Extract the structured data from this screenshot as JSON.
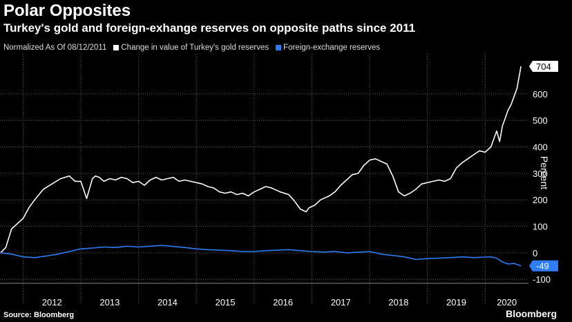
{
  "header": {
    "title": "Polar Opposites",
    "subtitle": "Turkey's gold and foreign-exhange reserves on opposite paths since 2011"
  },
  "legend": {
    "normalized": "Normalized As Of 08/12/2011",
    "gold": "Change in value of Turkey's gold reserves",
    "fx": "Foreign-exchange reserves"
  },
  "footer": {
    "source": "Source: Bloomberg",
    "brand": "Bloomberg"
  },
  "colors": {
    "gold": "#ffffff",
    "fx": "#2e7cf6",
    "background": "#000000",
    "grid": "#5a5a5a"
  },
  "chart_data": {
    "type": "line",
    "ylabel": "Percent",
    "ylim": [
      -115,
      730
    ],
    "xlim": [
      2011.6,
      2020.75
    ],
    "yticks": [
      -100,
      0,
      100,
      200,
      300,
      400,
      500,
      600
    ],
    "xticks": [
      "2012",
      "2013",
      "2014",
      "2015",
      "2016",
      "2017",
      "2018",
      "2019",
      "2020"
    ],
    "grid": true,
    "legend_position": "top-left",
    "series": [
      {
        "name": "Change in value of Turkey's gold reserves",
        "end_label": "704",
        "x": [
          2011.61,
          2011.7,
          2011.8,
          2011.9,
          2012.0,
          2012.1,
          2012.2,
          2012.35,
          2012.5,
          2012.65,
          2012.8,
          2012.9,
          2013.0,
          2013.1,
          2013.2,
          2013.25,
          2013.32,
          2013.4,
          2013.5,
          2013.6,
          2013.7,
          2013.8,
          2013.9,
          2014.0,
          2014.1,
          2014.2,
          2014.3,
          2014.4,
          2014.5,
          2014.6,
          2014.7,
          2014.8,
          2014.9,
          2015.0,
          2015.1,
          2015.2,
          2015.3,
          2015.4,
          2015.5,
          2015.6,
          2015.7,
          2015.8,
          2015.9,
          2016.0,
          2016.1,
          2016.2,
          2016.3,
          2016.45,
          2016.6,
          2016.7,
          2016.8,
          2016.9,
          2016.95,
          2017.05,
          2017.15,
          2017.3,
          2017.4,
          2017.5,
          2017.6,
          2017.7,
          2017.8,
          2017.9,
          2018.0,
          2018.1,
          2018.2,
          2018.3,
          2018.4,
          2018.5,
          2018.6,
          2018.7,
          2018.8,
          2018.9,
          2019.0,
          2019.1,
          2019.2,
          2019.3,
          2019.4,
          2019.5,
          2019.6,
          2019.7,
          2019.8,
          2019.9,
          2020.0,
          2020.05,
          2020.1,
          2020.15,
          2020.2,
          2020.25,
          2020.3,
          2020.35,
          2020.4,
          2020.45,
          2020.5,
          2020.55,
          2020.6,
          2020.62
        ],
        "y": [
          0,
          20,
          90,
          110,
          130,
          170,
          200,
          240,
          260,
          280,
          290,
          270,
          270,
          205,
          280,
          290,
          285,
          270,
          280,
          275,
          285,
          280,
          265,
          270,
          255,
          275,
          285,
          275,
          280,
          285,
          270,
          275,
          270,
          265,
          260,
          250,
          245,
          230,
          225,
          230,
          220,
          225,
          215,
          230,
          240,
          250,
          245,
          230,
          220,
          195,
          165,
          155,
          170,
          180,
          200,
          215,
          230,
          255,
          275,
          295,
          300,
          330,
          350,
          355,
          345,
          335,
          290,
          230,
          215,
          225,
          240,
          260,
          265,
          270,
          275,
          270,
          280,
          320,
          340,
          355,
          370,
          385,
          380,
          390,
          400,
          430,
          460,
          420,
          480,
          510,
          540,
          560,
          590,
          620,
          680,
          704
        ]
      },
      {
        "name": "Foreign-exchange reserves",
        "end_label": "-49",
        "x": [
          2011.61,
          2011.8,
          2012.0,
          2012.2,
          2012.4,
          2012.6,
          2012.8,
          2013.0,
          2013.2,
          2013.4,
          2013.6,
          2013.8,
          2014.0,
          2014.2,
          2014.4,
          2014.6,
          2014.8,
          2015.0,
          2015.2,
          2015.4,
          2015.6,
          2015.8,
          2016.0,
          2016.2,
          2016.4,
          2016.6,
          2016.8,
          2017.0,
          2017.2,
          2017.4,
          2017.6,
          2017.8,
          2018.0,
          2018.2,
          2018.4,
          2018.6,
          2018.8,
          2019.0,
          2019.2,
          2019.4,
          2019.6,
          2019.8,
          2020.0,
          2020.1,
          2020.2,
          2020.3,
          2020.4,
          2020.5,
          2020.62
        ],
        "y": [
          0,
          -5,
          -15,
          -18,
          -12,
          -5,
          5,
          15,
          18,
          22,
          20,
          25,
          22,
          25,
          28,
          24,
          20,
          15,
          12,
          10,
          8,
          5,
          5,
          8,
          10,
          12,
          8,
          5,
          3,
          5,
          0,
          2,
          5,
          -5,
          -10,
          -15,
          -25,
          -22,
          -20,
          -18,
          -15,
          -18,
          -16,
          -15,
          -20,
          -35,
          -42,
          -40,
          -49
        ]
      }
    ]
  }
}
